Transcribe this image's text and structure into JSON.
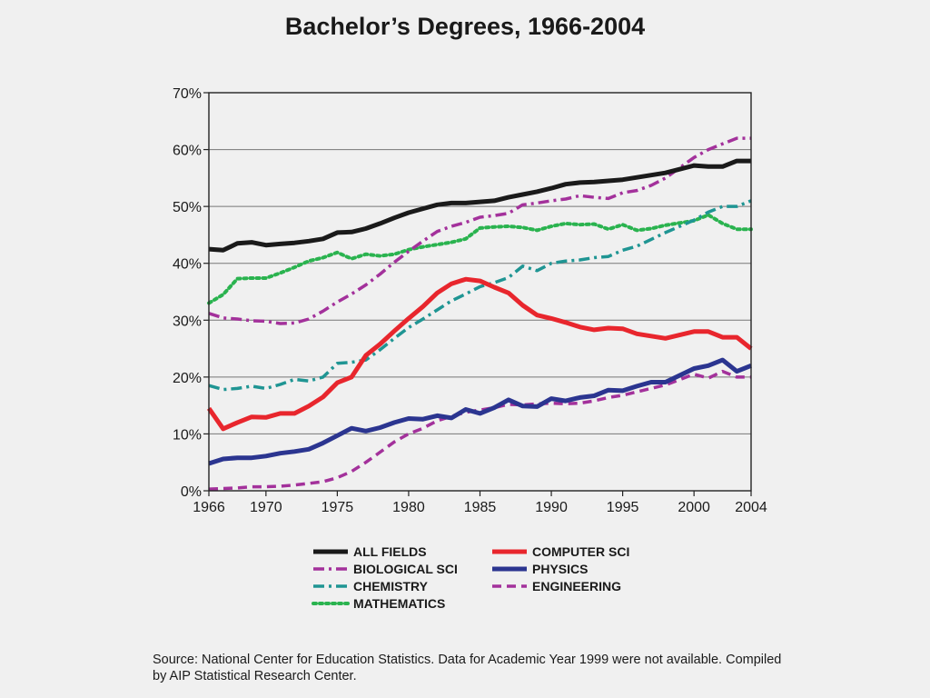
{
  "chart_data": {
    "type": "line",
    "title": "Bachelor’s Degrees, 1966-2004",
    "xlim": [
      1966,
      2004
    ],
    "ylim": [
      0,
      70
    ],
    "x_ticks": [
      "1966",
      "1970",
      "1975",
      "1980",
      "1985",
      "1990",
      "1995",
      "2000",
      "2004"
    ],
    "y_ticks": [
      "0%",
      "10%",
      "20%",
      "30%",
      "40%",
      "50%",
      "60%",
      "70%"
    ],
    "grid": true,
    "legend_position": "bottom",
    "series": [
      {
        "name": "ALL FIELDS",
        "color": "#1a1a1a",
        "style": "solid",
        "x": [
          1966,
          1967,
          1968,
          1969,
          1970,
          1971,
          1972,
          1973,
          1974,
          1975,
          1976,
          1977,
          1978,
          1979,
          1980,
          1981,
          1982,
          1983,
          1984,
          1985,
          1986,
          1987,
          1988,
          1989,
          1990,
          1991,
          1992,
          1993,
          1994,
          1995,
          1996,
          1997,
          1998,
          2000,
          2001,
          2002,
          2003,
          2004
        ],
        "y": [
          42.5,
          42.3,
          43.5,
          43.7,
          43.2,
          43.4,
          43.6,
          43.9,
          44.3,
          45.4,
          45.5,
          46.1,
          47.0,
          48.0,
          48.9,
          49.6,
          50.3,
          50.6,
          50.6,
          50.8,
          51.0,
          51.6,
          52.1,
          52.6,
          53.2,
          53.9,
          54.2,
          54.3,
          54.5,
          54.7,
          55.1,
          55.5,
          55.9,
          57.2,
          57.0,
          57.0,
          58.0,
          58.0
        ]
      },
      {
        "name": "COMPUTER SCI",
        "color": "#e8262d",
        "style": "solid",
        "x": [
          1966,
          1967,
          1968,
          1969,
          1970,
          1971,
          1972,
          1973,
          1974,
          1975,
          1976,
          1977,
          1978,
          1979,
          1980,
          1981,
          1982,
          1983,
          1984,
          1985,
          1986,
          1987,
          1988,
          1989,
          1990,
          1991,
          1992,
          1993,
          1994,
          1995,
          1996,
          1997,
          1998,
          2000,
          2001,
          2002,
          2003,
          2004
        ],
        "y": [
          14.5,
          10.9,
          12.0,
          13.0,
          12.9,
          13.6,
          13.6,
          14.9,
          16.5,
          19.0,
          20.0,
          23.8,
          25.8,
          28.1,
          30.3,
          32.4,
          34.8,
          36.4,
          37.2,
          36.9,
          35.8,
          34.8,
          32.6,
          30.9,
          30.3,
          29.6,
          28.8,
          28.3,
          28.6,
          28.5,
          27.6,
          27.2,
          26.8,
          28.0,
          28.0,
          27.0,
          27.0,
          25.0
        ]
      },
      {
        "name": "BIOLOGICAL SCI",
        "color": "#a3319b",
        "style": "dashdot",
        "x": [
          1966,
          1967,
          1968,
          1969,
          1970,
          1971,
          1972,
          1973,
          1974,
          1975,
          1976,
          1977,
          1978,
          1979,
          1980,
          1981,
          1982,
          1983,
          1984,
          1985,
          1986,
          1987,
          1988,
          1989,
          1990,
          1991,
          1992,
          1993,
          1994,
          1995,
          1996,
          1997,
          1998,
          2000,
          2001,
          2002,
          2003,
          2004
        ],
        "y": [
          31.2,
          30.4,
          30.2,
          29.9,
          29.8,
          29.4,
          29.5,
          30.2,
          31.6,
          33.2,
          34.6,
          36.2,
          38.1,
          40.2,
          42.1,
          43.9,
          45.6,
          46.5,
          47.2,
          48.1,
          48.4,
          48.8,
          50.3,
          50.6,
          51.0,
          51.3,
          51.9,
          51.6,
          51.4,
          52.4,
          52.8,
          53.7,
          55.0,
          58.6,
          60.0,
          61.0,
          62.0,
          62.0
        ]
      },
      {
        "name": "PHYSICS",
        "color": "#2b3590",
        "style": "solid",
        "x": [
          1966,
          1967,
          1968,
          1969,
          1970,
          1971,
          1972,
          1973,
          1974,
          1975,
          1976,
          1977,
          1978,
          1979,
          1980,
          1981,
          1982,
          1983,
          1984,
          1985,
          1986,
          1987,
          1988,
          1989,
          1990,
          1991,
          1992,
          1993,
          1994,
          1995,
          1996,
          1997,
          1998,
          2000,
          2001,
          2002,
          2003,
          2004
        ],
        "y": [
          4.8,
          5.6,
          5.8,
          5.8,
          6.1,
          6.6,
          6.9,
          7.3,
          8.4,
          9.7,
          11.0,
          10.5,
          11.1,
          12.0,
          12.7,
          12.6,
          13.2,
          12.8,
          14.3,
          13.6,
          14.6,
          16.0,
          14.9,
          14.8,
          16.2,
          15.8,
          16.4,
          16.7,
          17.7,
          17.6,
          18.4,
          19.1,
          19.1,
          21.5,
          22.0,
          23.0,
          21.0,
          22.0
        ]
      },
      {
        "name": "CHEMISTRY",
        "color": "#1f9593",
        "style": "dashdot",
        "x": [
          1966,
          1967,
          1968,
          1969,
          1970,
          1971,
          1972,
          1973,
          1974,
          1975,
          1976,
          1977,
          1978,
          1979,
          1980,
          1981,
          1982,
          1983,
          1984,
          1985,
          1986,
          1987,
          1988,
          1989,
          1990,
          1991,
          1992,
          1993,
          1994,
          1995,
          1996,
          1997,
          1998,
          2000,
          2001,
          2002,
          2003,
          2004
        ],
        "y": [
          18.5,
          17.8,
          18.0,
          18.4,
          18.0,
          18.7,
          19.6,
          19.3,
          20.0,
          22.4,
          22.6,
          23.0,
          24.8,
          26.8,
          28.7,
          30.2,
          31.8,
          33.4,
          34.6,
          35.9,
          36.6,
          37.5,
          39.5,
          38.7,
          40.0,
          40.4,
          40.6,
          41.0,
          41.2,
          42.3,
          43.0,
          44.2,
          45.4,
          47.6,
          49.0,
          50.0,
          50.0,
          51.0
        ]
      },
      {
        "name": "ENGINEERING",
        "color": "#a3319b",
        "style": "dashed",
        "x": [
          1966,
          1967,
          1968,
          1969,
          1970,
          1971,
          1972,
          1973,
          1974,
          1975,
          1976,
          1977,
          1978,
          1979,
          1980,
          1981,
          1982,
          1983,
          1984,
          1985,
          1986,
          1987,
          1988,
          1989,
          1990,
          1991,
          1992,
          1993,
          1994,
          1995,
          1996,
          1997,
          1998,
          2000,
          2001,
          2002,
          2003,
          2004
        ],
        "y": [
          0.3,
          0.4,
          0.5,
          0.7,
          0.7,
          0.8,
          1.0,
          1.3,
          1.6,
          2.3,
          3.4,
          5.0,
          6.8,
          8.6,
          10.0,
          11.0,
          12.3,
          13.1,
          13.8,
          14.2,
          14.6,
          15.2,
          15.1,
          15.3,
          15.4,
          15.3,
          15.4,
          15.8,
          16.4,
          16.8,
          17.4,
          18.0,
          18.6,
          20.5,
          19.8,
          21.0,
          20.0,
          20.0
        ]
      },
      {
        "name": "MATHEMATICS",
        "color": "#2ab34f",
        "style": "dotted",
        "x": [
          1966,
          1967,
          1968,
          1969,
          1970,
          1971,
          1972,
          1973,
          1974,
          1975,
          1976,
          1977,
          1978,
          1979,
          1980,
          1981,
          1982,
          1983,
          1984,
          1985,
          1986,
          1987,
          1988,
          1989,
          1990,
          1991,
          1992,
          1993,
          1994,
          1995,
          1996,
          1997,
          1998,
          2000,
          2001,
          2002,
          2003,
          2004
        ],
        "y": [
          33.0,
          34.5,
          37.3,
          37.4,
          37.4,
          38.3,
          39.3,
          40.4,
          41.0,
          41.9,
          40.8,
          41.6,
          41.3,
          41.6,
          42.4,
          42.9,
          43.3,
          43.7,
          44.3,
          46.2,
          46.4,
          46.5,
          46.3,
          45.8,
          46.5,
          47.0,
          46.8,
          46.9,
          46.0,
          46.8,
          45.8,
          46.1,
          46.7,
          47.5,
          48.5,
          47.0,
          46.0,
          46.0
        ]
      }
    ]
  },
  "legend_order": [
    [
      "ALL FIELDS",
      "COMPUTER SCI"
    ],
    [
      "BIOLOGICAL SCI",
      "PHYSICS"
    ],
    [
      "CHEMISTRY",
      "ENGINEERING"
    ],
    [
      "MATHEMATICS"
    ]
  ],
  "source_note": "Source:  National Center for Education Statistics.  Data for Academic Year 1999 were not available.  Compiled by AIP Statistical Research Center."
}
